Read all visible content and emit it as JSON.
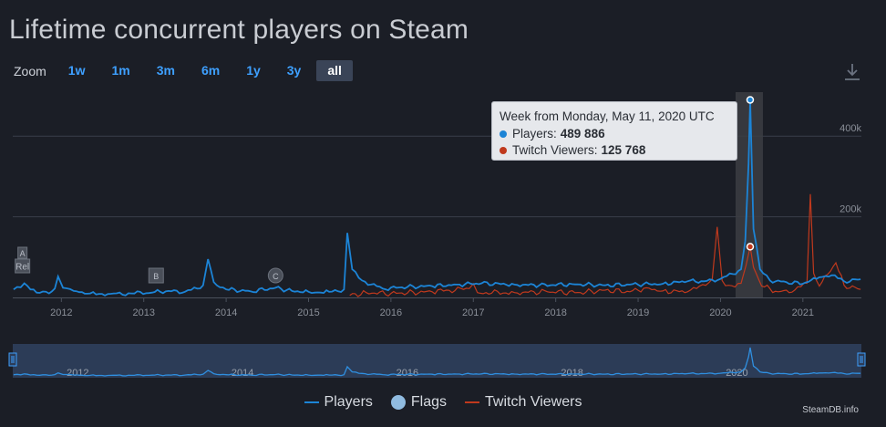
{
  "page": {
    "title": "Lifetime concurrent players on Steam",
    "zoom_label": "Zoom",
    "zoom_buttons": [
      "1w",
      "1m",
      "3m",
      "6m",
      "1y",
      "3y",
      "all"
    ],
    "zoom_active": "all",
    "credit": "SteamDB.info"
  },
  "tooltip": {
    "header": "Week from Monday, May 11, 2020 UTC",
    "players_label": "Players:",
    "players_value": "489 886",
    "twitch_label": "Twitch Viewers:",
    "twitch_value": "125 768"
  },
  "legend": [
    {
      "label": "Players",
      "kind": "line",
      "color": "#1c84d6"
    },
    {
      "label": "Flags",
      "kind": "dot",
      "color": "#90bbe0"
    },
    {
      "label": "Twitch Viewers",
      "kind": "line",
      "color": "#c0391d"
    }
  ],
  "colors": {
    "players": "#1c84d6",
    "twitch": "#c0391d",
    "background": "#1b1e26",
    "grid": "#3a3f4a",
    "accent": "#3ea0ff"
  },
  "chart_data": {
    "type": "line",
    "title": "Lifetime concurrent players on Steam",
    "x_unit": "year",
    "xlim": [
      2011.41,
      2021.71
    ],
    "ylim": [
      0,
      500000
    ],
    "y_ticks": [
      {
        "value": 200000,
        "label": "200k"
      },
      {
        "value": 400000,
        "label": "400k"
      }
    ],
    "x_ticks": [
      "2012",
      "2013",
      "2014",
      "2015",
      "2016",
      "2017",
      "2018",
      "2019",
      "2020",
      "2021"
    ],
    "grid": true,
    "legend_position": "bottom-center",
    "highlight": {
      "x": 2020.36,
      "label": "Week from Monday, May 11, 2020 UTC"
    },
    "series": [
      {
        "name": "Players",
        "color": "#1c84d6",
        "points": [
          [
            2011.42,
            20000
          ],
          [
            2011.55,
            35000
          ],
          [
            2011.7,
            12000
          ],
          [
            2011.85,
            10000
          ],
          [
            2011.92,
            22000
          ],
          [
            2011.96,
            52000
          ],
          [
            2012.02,
            24000
          ],
          [
            2012.15,
            16000
          ],
          [
            2012.35,
            10000
          ],
          [
            2012.6,
            9000
          ],
          [
            2012.85,
            10000
          ],
          [
            2013.1,
            12000
          ],
          [
            2013.3,
            16000
          ],
          [
            2013.5,
            14000
          ],
          [
            2013.65,
            22000
          ],
          [
            2013.72,
            30000
          ],
          [
            2013.78,
            95000
          ],
          [
            2013.85,
            38000
          ],
          [
            2014.0,
            20000
          ],
          [
            2014.3,
            15000
          ],
          [
            2014.6,
            24000
          ],
          [
            2014.8,
            16000
          ],
          [
            2015.0,
            14000
          ],
          [
            2015.15,
            12000
          ],
          [
            2015.25,
            14000
          ],
          [
            2015.43,
            20000
          ],
          [
            2015.47,
            160000
          ],
          [
            2015.53,
            70000
          ],
          [
            2015.65,
            42000
          ],
          [
            2015.9,
            22000
          ],
          [
            2016.2,
            26000
          ],
          [
            2016.5,
            28000
          ],
          [
            2016.8,
            32000
          ],
          [
            2017.1,
            35000
          ],
          [
            2017.5,
            32000
          ],
          [
            2017.8,
            30000
          ],
          [
            2018.2,
            33000
          ],
          [
            2018.6,
            30000
          ],
          [
            2018.9,
            32000
          ],
          [
            2019.3,
            34000
          ],
          [
            2019.6,
            40000
          ],
          [
            2019.8,
            40000
          ],
          [
            2020.0,
            46000
          ],
          [
            2020.15,
            58000
          ],
          [
            2020.25,
            70000
          ],
          [
            2020.3,
            140000
          ],
          [
            2020.34,
            330000
          ],
          [
            2020.36,
            489886
          ],
          [
            2020.4,
            170000
          ],
          [
            2020.48,
            70000
          ],
          [
            2020.6,
            42000
          ],
          [
            2020.8,
            38000
          ],
          [
            2021.0,
            34000
          ],
          [
            2021.2,
            50000
          ],
          [
            2021.35,
            55000
          ],
          [
            2021.5,
            40000
          ],
          [
            2021.7,
            45000
          ]
        ]
      },
      {
        "name": "Twitch Viewers",
        "color": "#c0391d",
        "points": [
          [
            2015.5,
            5000
          ],
          [
            2015.7,
            12000
          ],
          [
            2016.0,
            10000
          ],
          [
            2016.5,
            14000
          ],
          [
            2016.95,
            22000
          ],
          [
            2017.0,
            34000
          ],
          [
            2017.05,
            12000
          ],
          [
            2017.5,
            12000
          ],
          [
            2017.9,
            14000
          ],
          [
            2018.3,
            12000
          ],
          [
            2018.6,
            18000
          ],
          [
            2018.9,
            14000
          ],
          [
            2019.1,
            24000
          ],
          [
            2019.3,
            16000
          ],
          [
            2019.6,
            14000
          ],
          [
            2019.82,
            30000
          ],
          [
            2019.9,
            46000
          ],
          [
            2019.96,
            175000
          ],
          [
            2020.02,
            42000
          ],
          [
            2020.1,
            30000
          ],
          [
            2020.25,
            35000
          ],
          [
            2020.31,
            80000
          ],
          [
            2020.36,
            125768
          ],
          [
            2020.4,
            75000
          ],
          [
            2020.5,
            28000
          ],
          [
            2020.7,
            14000
          ],
          [
            2020.9,
            18000
          ],
          [
            2021.05,
            35000
          ],
          [
            2021.09,
            256000
          ],
          [
            2021.13,
            60000
          ],
          [
            2021.2,
            28000
          ],
          [
            2021.4,
            86000
          ],
          [
            2021.5,
            30000
          ],
          [
            2021.7,
            20000
          ]
        ]
      }
    ],
    "flags": [
      {
        "label": "A",
        "x": 2011.55
      },
      {
        "label": "Rel",
        "x": 2011.55
      },
      {
        "label": "B",
        "x": 2013.15
      },
      {
        "label": "C",
        "x": 2014.6
      }
    ],
    "navigator": {
      "x_ticks": [
        "2012",
        "2014",
        "2016",
        "2018",
        "2020"
      ]
    }
  }
}
